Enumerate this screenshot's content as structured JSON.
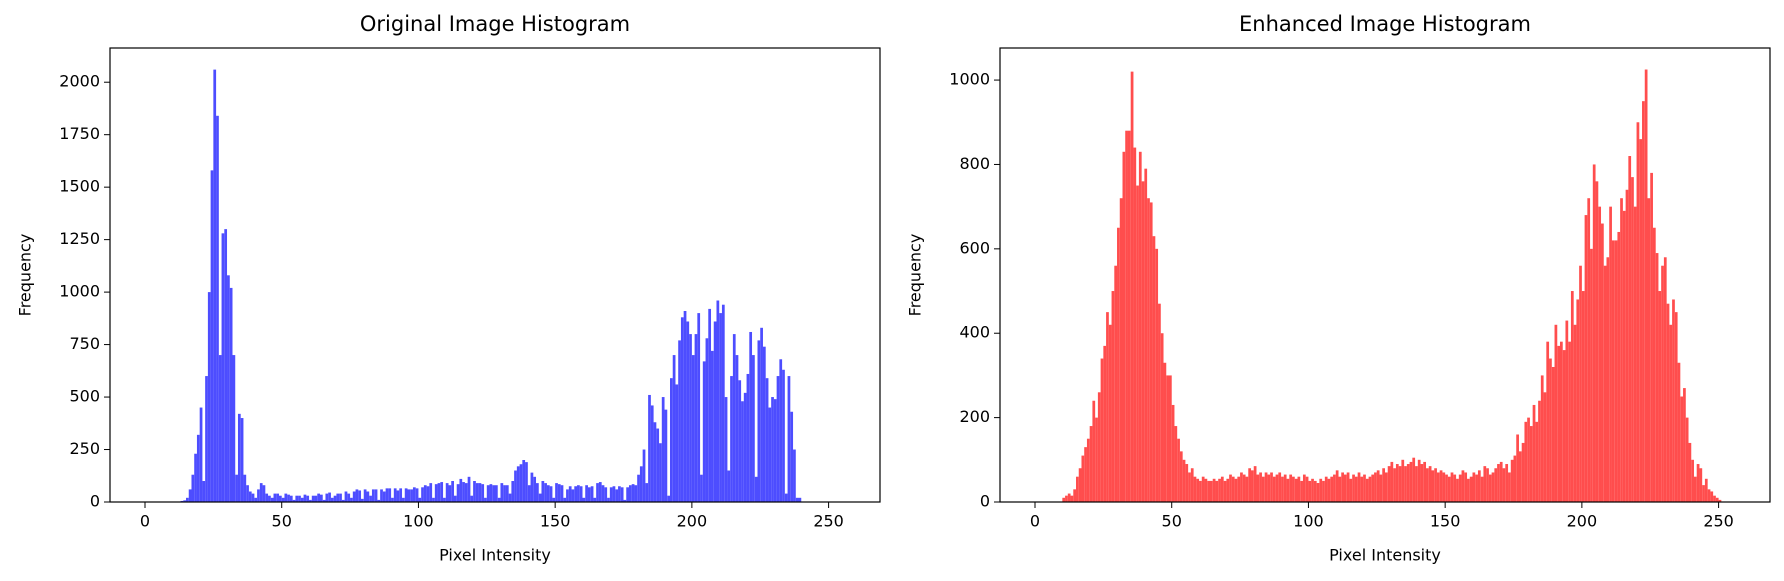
{
  "chart_data": [
    {
      "type": "histogram",
      "title": "Original Image Histogram",
      "x_label": "Pixel Intensity",
      "y_label": "Frequency",
      "color": "#4d4dff",
      "xlim": [
        -12.8,
        268.8
      ],
      "ylim": [
        0,
        2163
      ],
      "xticks": [
        0,
        50,
        100,
        150,
        200,
        250
      ],
      "yticks": [
        0,
        250,
        500,
        750,
        1000,
        1250,
        1500,
        1750,
        2000
      ],
      "bins": [
        0,
        1,
        2,
        3,
        4,
        5,
        6,
        7,
        8,
        9,
        10,
        11,
        12,
        13,
        14,
        15,
        16,
        17,
        18,
        19,
        20,
        21,
        22,
        23,
        24,
        25,
        26,
        27,
        28,
        29,
        30,
        31,
        32,
        33,
        34,
        35,
        36,
        37,
        38,
        39,
        40,
        41,
        42,
        43,
        44,
        45,
        46,
        47,
        48,
        49,
        50,
        51,
        52,
        53,
        54,
        55,
        56,
        57,
        58,
        59,
        60,
        61,
        62,
        63,
        64,
        65,
        66,
        67,
        68,
        69,
        70,
        71,
        72,
        73,
        74,
        75,
        76,
        77,
        78,
        79,
        80,
        81,
        82,
        83,
        84,
        85,
        86,
        87,
        88,
        89,
        90,
        91,
        92,
        93,
        94,
        95,
        96,
        97,
        98,
        99,
        100,
        101,
        102,
        103,
        104,
        105,
        106,
        107,
        108,
        109,
        110,
        111,
        112,
        113,
        114,
        115,
        116,
        117,
        118,
        119,
        120,
        121,
        122,
        123,
        124,
        125,
        126,
        127,
        128,
        129,
        130,
        131,
        132,
        133,
        134,
        135,
        136,
        137,
        138,
        139,
        140,
        141,
        142,
        143,
        144,
        145,
        146,
        147,
        148,
        149,
        150,
        151,
        152,
        153,
        154,
        155,
        156,
        157,
        158,
        159,
        160,
        161,
        162,
        163,
        164,
        165,
        166,
        167,
        168,
        169,
        170,
        171,
        172,
        173,
        174,
        175,
        176,
        177,
        178,
        179,
        180,
        181,
        182,
        183,
        184,
        185,
        186,
        187,
        188,
        189,
        190,
        191,
        192,
        193,
        194,
        195,
        196,
        197,
        198,
        199,
        200,
        201,
        202,
        203,
        204,
        205,
        206,
        207,
        208,
        209,
        210,
        211,
        212,
        213,
        214,
        215,
        216,
        217,
        218,
        219,
        220,
        221,
        222,
        223,
        224,
        225,
        226,
        227,
        228,
        229,
        230,
        231,
        232,
        233,
        234,
        235,
        236,
        237,
        238,
        239,
        240,
        241,
        242,
        243,
        244,
        245,
        246,
        247,
        248,
        249,
        250,
        251,
        252,
        253,
        254,
        255,
        256
      ],
      "values": [
        0,
        0,
        0,
        0,
        0,
        0,
        0,
        0,
        0,
        0,
        0,
        0,
        0,
        5,
        8,
        20,
        60,
        130,
        230,
        320,
        450,
        100,
        600,
        1000,
        1580,
        2060,
        1840,
        700,
        1280,
        1300,
        1080,
        1020,
        700,
        130,
        420,
        400,
        130,
        80,
        50,
        40,
        20,
        60,
        90,
        80,
        40,
        30,
        20,
        40,
        40,
        30,
        20,
        40,
        35,
        30,
        10,
        30,
        30,
        20,
        35,
        30,
        10,
        30,
        30,
        40,
        35,
        10,
        40,
        45,
        20,
        30,
        40,
        40,
        10,
        50,
        40,
        20,
        50,
        60,
        55,
        15,
        60,
        50,
        30,
        60,
        60,
        10,
        60,
        50,
        65,
        65,
        20,
        65,
        55,
        65,
        20,
        65,
        60,
        60,
        70,
        65,
        20,
        70,
        80,
        75,
        90,
        20,
        85,
        90,
        95,
        20,
        90,
        80,
        100,
        30,
        85,
        110,
        95,
        90,
        120,
        30,
        100,
        90,
        90,
        85,
        20,
        80,
        85,
        80,
        80,
        20,
        90,
        80,
        80,
        40,
        100,
        150,
        170,
        180,
        200,
        190,
        80,
        140,
        120,
        90,
        40,
        100,
        90,
        80,
        75,
        20,
        90,
        85,
        80,
        20,
        60,
        75,
        60,
        75,
        80,
        75,
        20,
        80,
        70,
        75,
        20,
        90,
        95,
        80,
        70,
        20,
        70,
        75,
        60,
        75,
        70,
        10,
        70,
        80,
        85,
        80,
        130,
        170,
        250,
        90,
        510,
        460,
        380,
        350,
        280,
        500,
        440,
        30,
        590,
        700,
        560,
        770,
        880,
        910,
        860,
        800,
        700,
        800,
        900,
        130,
        670,
        780,
        920,
        720,
        860,
        960,
        900,
        940,
        500,
        150,
        600,
        800,
        700,
        580,
        480,
        520,
        610,
        810,
        700,
        120,
        770,
        830,
        740,
        590,
        450,
        500,
        490,
        600,
        680,
        630,
        40,
        600,
        430,
        250,
        20,
        20,
        0,
        0,
        0,
        0,
        0,
        0,
        0,
        0,
        0,
        0,
        0,
        0,
        0,
        0,
        0,
        0
      ]
    },
    {
      "type": "histogram",
      "title": "Enhanced Image Histogram",
      "x_label": "Pixel Intensity",
      "y_label": "Frequency",
      "color": "#ff4d4d",
      "xlim": [
        -12.8,
        268.8
      ],
      "ylim": [
        0,
        1076
      ],
      "xticks": [
        0,
        50,
        100,
        150,
        200,
        250
      ],
      "yticks": [
        0,
        200,
        400,
        600,
        800,
        1000
      ],
      "bins": [
        0,
        1,
        2,
        3,
        4,
        5,
        6,
        7,
        8,
        9,
        10,
        11,
        12,
        13,
        14,
        15,
        16,
        17,
        18,
        19,
        20,
        21,
        22,
        23,
        24,
        25,
        26,
        27,
        28,
        29,
        30,
        31,
        32,
        33,
        34,
        35,
        36,
        37,
        38,
        39,
        40,
        41,
        42,
        43,
        44,
        45,
        46,
        47,
        48,
        49,
        50,
        51,
        52,
        53,
        54,
        55,
        56,
        57,
        58,
        59,
        60,
        61,
        62,
        63,
        64,
        65,
        66,
        67,
        68,
        69,
        70,
        71,
        72,
        73,
        74,
        75,
        76,
        77,
        78,
        79,
        80,
        81,
        82,
        83,
        84,
        85,
        86,
        87,
        88,
        89,
        90,
        91,
        92,
        93,
        94,
        95,
        96,
        97,
        98,
        99,
        100,
        101,
        102,
        103,
        104,
        105,
        106,
        107,
        108,
        109,
        110,
        111,
        112,
        113,
        114,
        115,
        116,
        117,
        118,
        119,
        120,
        121,
        122,
        123,
        124,
        125,
        126,
        127,
        128,
        129,
        130,
        131,
        132,
        133,
        134,
        135,
        136,
        137,
        138,
        139,
        140,
        141,
        142,
        143,
        144,
        145,
        146,
        147,
        148,
        149,
        150,
        151,
        152,
        153,
        154,
        155,
        156,
        157,
        158,
        159,
        160,
        161,
        162,
        163,
        164,
        165,
        166,
        167,
        168,
        169,
        170,
        171,
        172,
        173,
        174,
        175,
        176,
        177,
        178,
        179,
        180,
        181,
        182,
        183,
        184,
        185,
        186,
        187,
        188,
        189,
        190,
        191,
        192,
        193,
        194,
        195,
        196,
        197,
        198,
        199,
        200,
        201,
        202,
        203,
        204,
        205,
        206,
        207,
        208,
        209,
        210,
        211,
        212,
        213,
        214,
        215,
        216,
        217,
        218,
        219,
        220,
        221,
        222,
        223,
        224,
        225,
        226,
        227,
        228,
        229,
        230,
        231,
        232,
        233,
        234,
        235,
        236,
        237,
        238,
        239,
        240,
        241,
        242,
        243,
        244,
        245,
        246,
        247,
        248,
        249,
        250,
        251,
        252,
        253,
        254,
        255,
        256
      ],
      "values": [
        0,
        0,
        0,
        0,
        0,
        0,
        0,
        0,
        0,
        0,
        10,
        15,
        20,
        15,
        30,
        60,
        80,
        110,
        130,
        150,
        180,
        240,
        200,
        260,
        340,
        370,
        450,
        420,
        500,
        560,
        650,
        720,
        830,
        880,
        880,
        1020,
        840,
        750,
        830,
        760,
        790,
        720,
        710,
        630,
        600,
        470,
        400,
        330,
        300,
        300,
        230,
        180,
        150,
        120,
        100,
        90,
        70,
        80,
        60,
        55,
        50,
        60,
        55,
        50,
        50,
        55,
        50,
        55,
        60,
        50,
        55,
        65,
        60,
        55,
        60,
        70,
        65,
        60,
        80,
        75,
        85,
        65,
        70,
        60,
        70,
        65,
        70,
        60,
        65,
        70,
        60,
        65,
        55,
        65,
        60,
        55,
        60,
        50,
        65,
        60,
        50,
        55,
        50,
        45,
        55,
        50,
        60,
        55,
        60,
        65,
        75,
        60,
        70,
        65,
        70,
        55,
        65,
        60,
        70,
        60,
        65,
        55,
        60,
        65,
        70,
        75,
        65,
        80,
        70,
        85,
        95,
        80,
        90,
        85,
        100,
        85,
        90,
        95,
        105,
        85,
        100,
        90,
        95,
        80,
        85,
        75,
        80,
        70,
        75,
        70,
        65,
        60,
        70,
        65,
        55,
        65,
        75,
        70,
        55,
        60,
        70,
        65,
        75,
        60,
        85,
        80,
        65,
        70,
        80,
        90,
        95,
        80,
        90,
        70,
        100,
        110,
        160,
        120,
        140,
        190,
        200,
        180,
        230,
        190,
        240,
        300,
        260,
        380,
        340,
        320,
        420,
        370,
        380,
        360,
        430,
        380,
        500,
        420,
        480,
        560,
        500,
        680,
        720,
        600,
        800,
        760,
        700,
        660,
        560,
        580,
        700,
        620,
        620,
        640,
        720,
        690,
        740,
        820,
        770,
        700,
        900,
        860,
        950,
        1025,
        720,
        780,
        650,
        590,
        500,
        560,
        580,
        470,
        420,
        480,
        450,
        330,
        250,
        270,
        200,
        140,
        100,
        60,
        90,
        80,
        40,
        55,
        30,
        25,
        15,
        10,
        5,
        0,
        0,
        0,
        0,
        0
      ]
    }
  ]
}
